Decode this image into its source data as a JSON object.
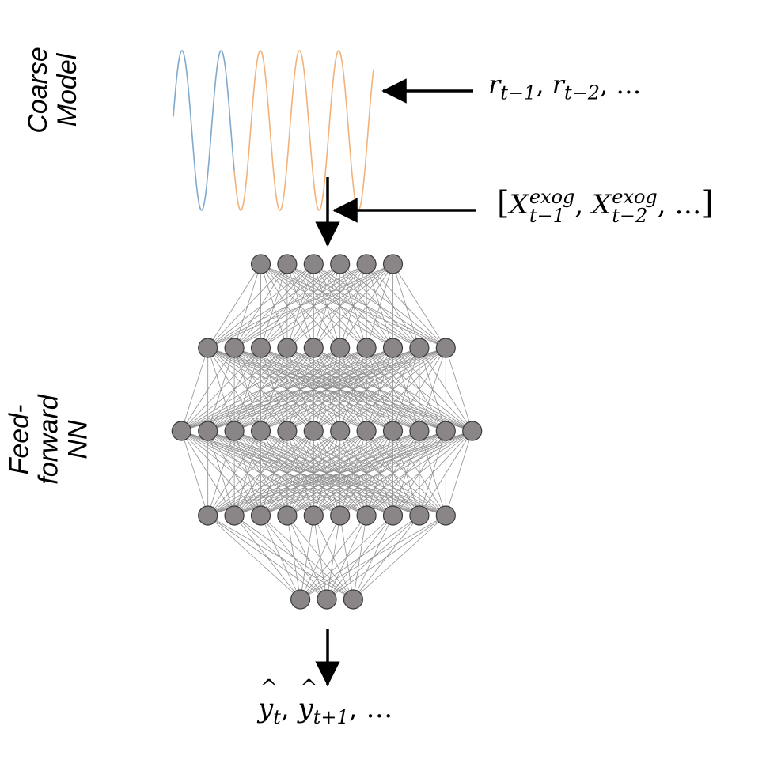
{
  "labels": {
    "coarse_model": "Coarse\nModel",
    "feed_forward_nn": "Feed-\nforward\nNN"
  },
  "math": {
    "residual_var": "r",
    "residual_sub_1": "t−1",
    "residual_sub_2": "t−2",
    "residual_ellipsis": "…",
    "exog_var": "X",
    "exog_sup": "exog",
    "exog_sub_1": "t−1",
    "exog_sub_2": "t−2",
    "exog_ellipsis": "…",
    "exog_bracket_open": "[",
    "exog_bracket_close": "]",
    "output_var": "y",
    "output_hat": "^",
    "output_sub_1": "t",
    "output_sub_2": "t+1",
    "output_ellipsis": "…",
    "comma": ","
  },
  "network": {
    "layer_sizes": [
      6,
      10,
      12,
      10,
      3
    ]
  },
  "colors": {
    "node_fill": "#8a8586",
    "node_stroke": "#3b3b3b",
    "edge": "#8f8f8f",
    "wave_history": "#7fa9cd",
    "wave_forecast": "#f2b27a",
    "arrow": "#000000"
  }
}
